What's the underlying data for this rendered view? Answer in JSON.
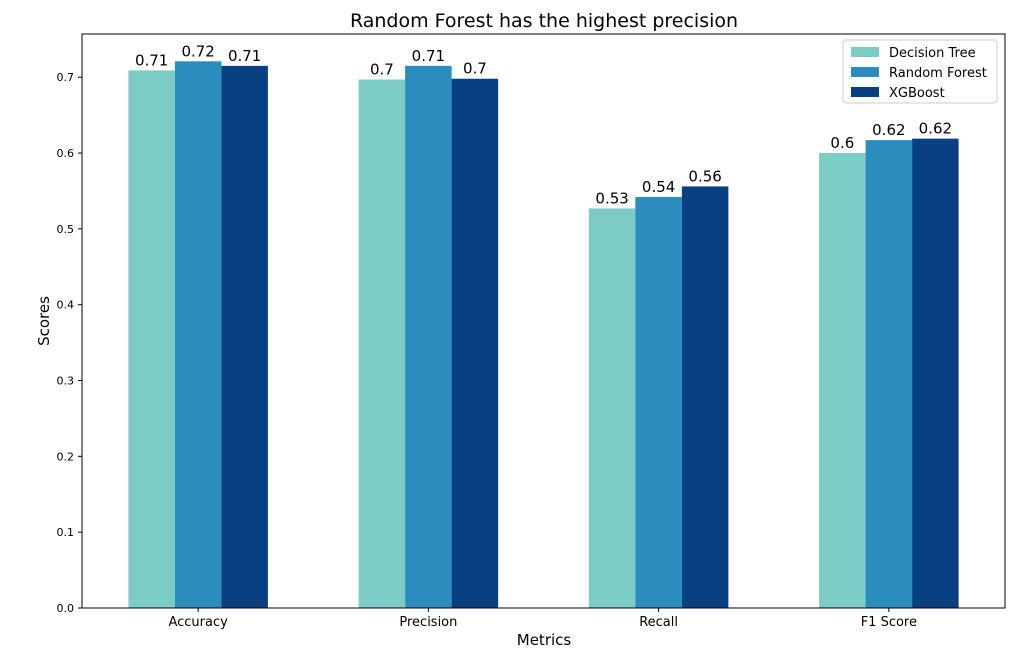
{
  "chart_data": {
    "type": "bar",
    "title": "Random Forest has the highest precision",
    "xlabel": "Metrics",
    "ylabel": "Scores",
    "categories": [
      "Accuracy",
      "Precision",
      "Recall",
      "F1 Score"
    ],
    "series": [
      {
        "name": "Decision Tree",
        "color": "#7bccc4",
        "values": [
          0.709,
          0.697,
          0.527,
          0.6
        ],
        "labels": [
          "0.71",
          "0.7",
          "0.53",
          "0.6"
        ]
      },
      {
        "name": "Random Forest",
        "color": "#2b8cbe",
        "values": [
          0.721,
          0.715,
          0.542,
          0.617
        ],
        "labels": [
          "0.72",
          "0.71",
          "0.54",
          "0.62"
        ]
      },
      {
        "name": "XGBoost",
        "color": "#084081",
        "values": [
          0.715,
          0.698,
          0.556,
          0.619
        ],
        "labels": [
          "0.71",
          "0.7",
          "0.56",
          "0.62"
        ]
      }
    ],
    "ylim": [
      0,
      0.757
    ],
    "yticks": [
      "0.0",
      "0.1",
      "0.2",
      "0.3",
      "0.4",
      "0.5",
      "0.6",
      "0.7"
    ],
    "ytick_values": [
      0,
      0.1,
      0.2,
      0.3,
      0.4,
      0.5,
      0.6,
      0.7
    ],
    "grid": false,
    "legend_position": "top-right"
  }
}
